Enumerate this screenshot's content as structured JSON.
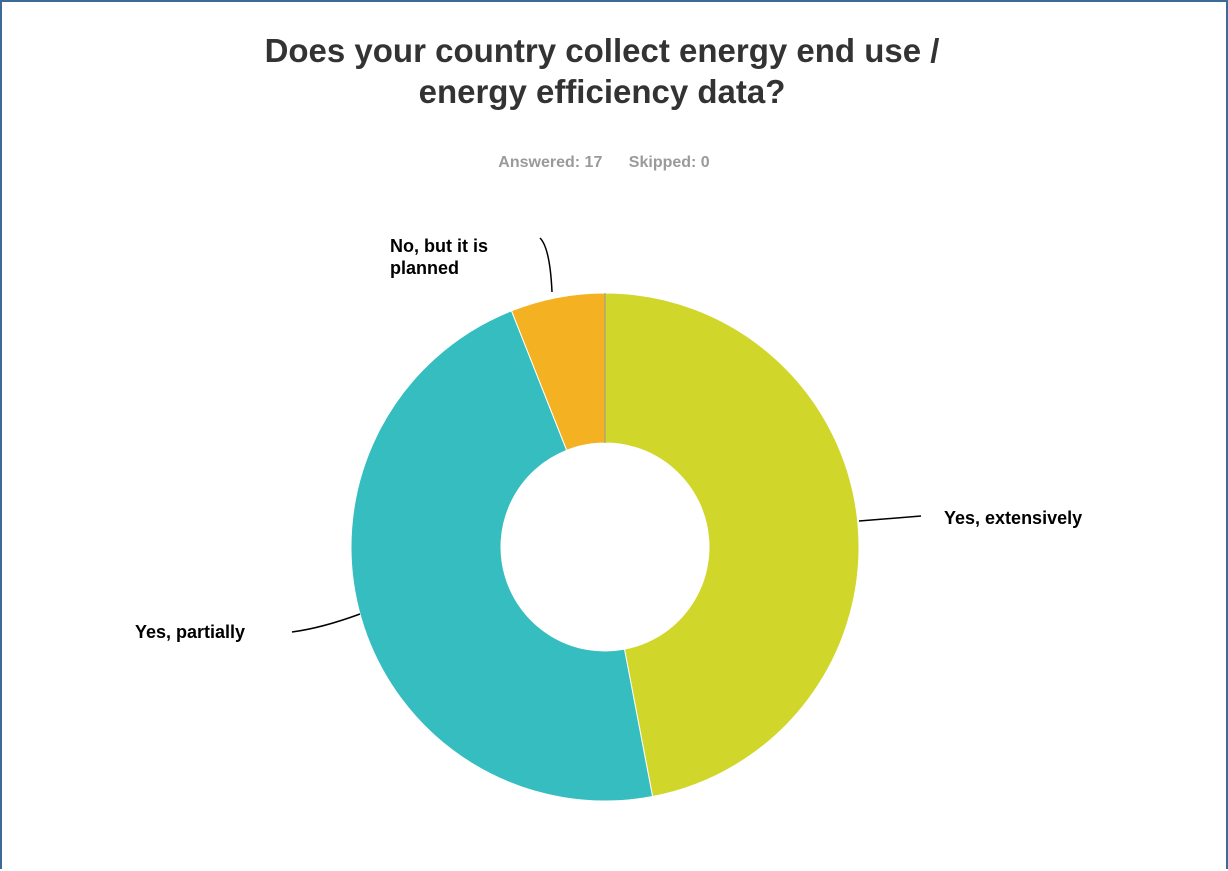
{
  "chart_data": {
    "type": "pie",
    "donut": true,
    "title": [
      "Does your country collect energy end use /",
      "energy efficiency data?"
    ],
    "stats": {
      "answered_label": "Answered: 17",
      "skipped_label": "Skipped: 0"
    },
    "slices": [
      {
        "label": [
          "Yes, extensively"
        ],
        "value": 0.47,
        "color": "#d0d62a"
      },
      {
        "label": [
          "Yes, partially"
        ],
        "value": 0.47,
        "color": "#35bdbf"
      },
      {
        "label": [
          "No, but it is",
          "planned"
        ],
        "value": 0.06,
        "color": "#f4b122"
      }
    ],
    "legend": "none"
  }
}
